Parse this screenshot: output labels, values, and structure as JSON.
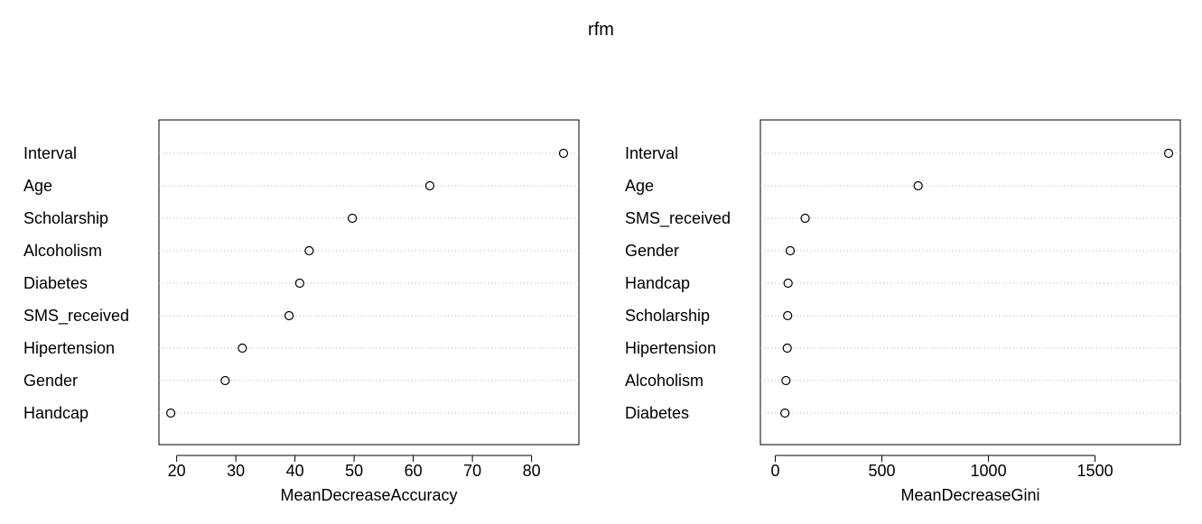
{
  "title": "rfm",
  "chart_data": [
    {
      "type": "scatter",
      "xlabel": "MeanDecreaseAccuracy",
      "xlim": [
        17,
        88
      ],
      "xticks": [
        20,
        30,
        40,
        50,
        60,
        70,
        80
      ],
      "categories": [
        "Interval",
        "Age",
        "Scholarship",
        "Alcoholism",
        "Diabetes",
        "SMS_received",
        "Hipertension",
        "Gender",
        "Handcap"
      ],
      "values": [
        85.4,
        62.8,
        49.7,
        42.4,
        40.8,
        39.0,
        31.1,
        28.2,
        19.0
      ],
      "grid": "dotted horizontal"
    },
    {
      "type": "scatter",
      "xlabel": "MeanDecreaseGini",
      "xlim": [
        -70,
        1900
      ],
      "xticks": [
        0,
        500,
        1000,
        1500
      ],
      "categories": [
        "Interval",
        "Age",
        "SMS_received",
        "Gender",
        "Handcap",
        "Scholarship",
        "Hipertension",
        "Alcoholism",
        "Diabetes"
      ],
      "values": [
        1845,
        670,
        140,
        70,
        60,
        58,
        56,
        50,
        45
      ],
      "grid": "dotted horizontal"
    }
  ]
}
